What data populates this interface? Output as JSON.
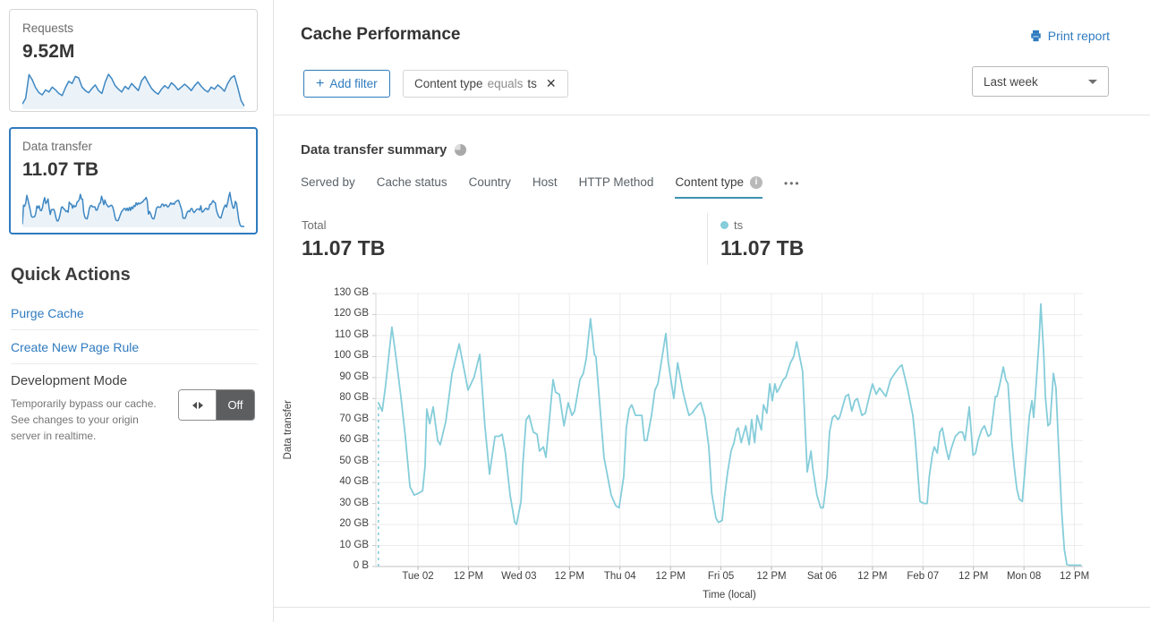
{
  "sidebar": {
    "requests_card": {
      "label": "Requests",
      "value": "9.52M",
      "spark": [
        12,
        28,
        95,
        80,
        58,
        44,
        38,
        52,
        46,
        60,
        52,
        42,
        36,
        58,
        76,
        70,
        90,
        86,
        60,
        50,
        44,
        56,
        66,
        50,
        42,
        74,
        96,
        84,
        64,
        54,
        46,
        62,
        54,
        70,
        60,
        50,
        78,
        90,
        72,
        56,
        46,
        40,
        54,
        64,
        56,
        72,
        64,
        52,
        60,
        68,
        60,
        50,
        64,
        74,
        62,
        52,
        46,
        60,
        54,
        66,
        58,
        48,
        70,
        86,
        92,
        60,
        22,
        6
      ]
    },
    "data_transfer_card": {
      "label": "Data transfer",
      "value": "11.07 TB"
    },
    "quick_actions": {
      "title": "Quick Actions",
      "links": [
        "Purge Cache",
        "Create New Page Rule"
      ],
      "dev_mode": {
        "title": "Development Mode",
        "description": "Temporarily bypass our cache. See changes to your origin server in realtime.",
        "toggle_state": "Off"
      }
    }
  },
  "header": {
    "title": "Cache Performance",
    "print_label": "Print report",
    "add_filter_label": "Add filter",
    "filter_chip": {
      "field": "Content type",
      "operator": "equals",
      "value": "ts"
    },
    "time_range": "Last week"
  },
  "summary": {
    "title": "Data transfer summary",
    "tabs": [
      {
        "label": "Served by"
      },
      {
        "label": "Cache status"
      },
      {
        "label": "Country"
      },
      {
        "label": "Host"
      },
      {
        "label": "HTTP Method"
      },
      {
        "label": "Content type",
        "active": true,
        "info": true
      }
    ],
    "more_label": "•••",
    "total": {
      "label": "Total",
      "value": "11.07 TB"
    },
    "series_stat": {
      "label": "ts",
      "value": "11.07 TB"
    }
  },
  "icons": {
    "close": "✕",
    "plus": "+",
    "info": "i"
  },
  "colors": {
    "link": "#2f7bbf",
    "selected_card_border": "#2f7bbf",
    "chart_line": "#85cdda",
    "sparkline": "#3e87c2",
    "sparkline_fill": "rgba(62,135,194,0.10)",
    "tab_underline": "#3d93b0",
    "grid": "#ececec",
    "toggle_off_bg": "#5d5e60"
  },
  "chart_data": {
    "type": "line",
    "title": "Data transfer summary",
    "xlabel": "Time (local)",
    "ylabel": "Data transfer",
    "x_unit": "hours (last week, hourly samples; x=0 is left edge of plot)",
    "x_range_hours": [
      0,
      168
    ],
    "ylim_gb": [
      0,
      130
    ],
    "y_ticks_gb": [
      0,
      10,
      20,
      30,
      40,
      50,
      60,
      70,
      80,
      90,
      100,
      110,
      120,
      130
    ],
    "y_tick_labels": [
      "0 B",
      "10 GB",
      "20 GB",
      "30 GB",
      "40 GB",
      "50 GB",
      "60 GB",
      "70 GB",
      "80 GB",
      "90 GB",
      "100 GB",
      "110 GB",
      "120 GB",
      "130 GB"
    ],
    "x_ticks_hours": [
      10,
      22,
      34,
      46,
      58,
      70,
      82,
      94,
      106,
      118,
      130,
      142,
      154,
      166
    ],
    "x_tick_labels": [
      "Tue 02",
      "12 PM",
      "Wed 03",
      "12 PM",
      "Thu 04",
      "12 PM",
      "Fri 05",
      "12 PM",
      "Sat 06",
      "12 PM",
      "Feb 07",
      "12 PM",
      "Mon 08",
      "12 PM"
    ],
    "grid": true,
    "leading_dashed_from_zero": true,
    "legend": {
      "position": "stats-row",
      "entries": [
        "ts"
      ]
    },
    "series": [
      {
        "name": "ts",
        "total": "11.07 TB",
        "color": "#85cdda",
        "points_h_gb": [
          [
            0.6,
            78
          ],
          [
            1.5,
            74
          ],
          [
            2.3,
            86
          ],
          [
            3.8,
            114
          ],
          [
            4.9,
            98
          ],
          [
            6,
            80
          ],
          [
            7,
            62
          ],
          [
            8.1,
            38
          ],
          [
            9.1,
            34
          ],
          [
            10.2,
            35
          ],
          [
            11.1,
            36
          ],
          [
            11.7,
            48
          ],
          [
            12.1,
            75
          ],
          [
            12.8,
            68
          ],
          [
            13.6,
            76
          ],
          [
            14.7,
            60
          ],
          [
            15.3,
            58
          ],
          [
            16.6,
            69
          ],
          [
            18.1,
            92
          ],
          [
            19.8,
            106
          ],
          [
            21.9,
            84
          ],
          [
            23.3,
            90
          ],
          [
            24.7,
            101
          ],
          [
            25.9,
            67
          ],
          [
            27,
            44
          ],
          [
            28.3,
            62
          ],
          [
            29.3,
            62
          ],
          [
            30,
            63
          ],
          [
            30.8,
            54
          ],
          [
            31.9,
            34
          ],
          [
            33,
            21
          ],
          [
            33.4,
            20
          ],
          [
            34.5,
            31
          ],
          [
            34.9,
            48
          ],
          [
            35.7,
            70
          ],
          [
            36.4,
            72
          ],
          [
            37.4,
            64
          ],
          [
            38.3,
            63
          ],
          [
            38.9,
            55
          ],
          [
            39.8,
            57
          ],
          [
            40.4,
            52
          ],
          [
            42.1,
            89
          ],
          [
            42.7,
            83
          ],
          [
            43.6,
            82
          ],
          [
            44.7,
            67
          ],
          [
            45.7,
            78
          ],
          [
            46.6,
            72
          ],
          [
            47.2,
            74
          ],
          [
            48.5,
            89
          ],
          [
            49.3,
            92
          ],
          [
            50,
            99
          ],
          [
            51,
            118
          ],
          [
            51.9,
            101
          ],
          [
            52.3,
            100
          ],
          [
            54.2,
            52
          ],
          [
            55.9,
            34
          ],
          [
            57,
            29
          ],
          [
            57.8,
            28
          ],
          [
            58.9,
            43
          ],
          [
            59.5,
            66
          ],
          [
            60.2,
            75
          ],
          [
            60.8,
            77
          ],
          [
            61.7,
            72
          ],
          [
            62.3,
            72
          ],
          [
            63.2,
            72
          ],
          [
            63.8,
            60
          ],
          [
            64.4,
            60
          ],
          [
            65.5,
            72
          ],
          [
            66.3,
            84
          ],
          [
            67,
            87
          ],
          [
            68.9,
            111
          ],
          [
            69.5,
            97
          ],
          [
            70.8,
            80
          ],
          [
            71.7,
            97
          ],
          [
            72.9,
            84
          ],
          [
            73.6,
            78
          ],
          [
            74.4,
            72
          ],
          [
            75.1,
            73
          ],
          [
            76.6,
            77
          ],
          [
            77.2,
            78
          ],
          [
            78.2,
            71
          ],
          [
            79.1,
            57
          ],
          [
            79.8,
            35
          ],
          [
            80.8,
            23
          ],
          [
            81.4,
            21
          ],
          [
            82.3,
            22
          ],
          [
            82.9,
            34
          ],
          [
            83.6,
            45
          ],
          [
            84.4,
            55
          ],
          [
            85.1,
            59
          ],
          [
            85.7,
            65
          ],
          [
            86.1,
            66
          ],
          [
            86.8,
            59
          ],
          [
            87.9,
            67
          ],
          [
            88.7,
            58
          ],
          [
            89.3,
            70
          ],
          [
            90,
            59
          ],
          [
            90.6,
            72
          ],
          [
            91.6,
            65
          ],
          [
            92.1,
            77
          ],
          [
            92.9,
            73
          ],
          [
            93.6,
            87
          ],
          [
            94.2,
            79
          ],
          [
            94.8,
            87
          ],
          [
            95.3,
            83
          ],
          [
            95.9,
            85
          ],
          [
            96.8,
            89
          ],
          [
            97.4,
            90
          ],
          [
            98.5,
            97
          ],
          [
            99.3,
            100
          ],
          [
            100,
            107
          ],
          [
            101.4,
            93
          ],
          [
            102.5,
            45
          ],
          [
            103.4,
            55
          ],
          [
            103.8,
            47
          ],
          [
            104.8,
            34
          ],
          [
            105.7,
            28
          ],
          [
            106.3,
            28
          ],
          [
            107.2,
            43
          ],
          [
            107.8,
            64
          ],
          [
            108.5,
            71
          ],
          [
            109.1,
            72
          ],
          [
            109.8,
            70
          ],
          [
            110.2,
            71
          ],
          [
            111.6,
            81
          ],
          [
            112.3,
            82
          ],
          [
            113.1,
            74
          ],
          [
            113.8,
            79
          ],
          [
            114.4,
            80
          ],
          [
            115.5,
            72
          ],
          [
            116.3,
            73
          ],
          [
            117,
            79
          ],
          [
            118,
            87
          ],
          [
            118.9,
            82
          ],
          [
            119.7,
            85
          ],
          [
            121.2,
            81
          ],
          [
            122.3,
            89
          ],
          [
            123.3,
            92
          ],
          [
            124.4,
            95
          ],
          [
            125,
            96
          ],
          [
            126.3,
            85
          ],
          [
            127.6,
            72
          ],
          [
            128.2,
            60
          ],
          [
            129.3,
            31
          ],
          [
            130.2,
            30
          ],
          [
            131,
            30
          ],
          [
            131.5,
            43
          ],
          [
            132.3,
            54
          ],
          [
            132.7,
            57
          ],
          [
            133.4,
            54
          ],
          [
            134,
            64
          ],
          [
            134.6,
            66
          ],
          [
            135.5,
            56
          ],
          [
            136.1,
            51
          ],
          [
            136.7,
            56
          ],
          [
            137.7,
            62
          ],
          [
            138.7,
            64
          ],
          [
            139.4,
            64
          ],
          [
            140,
            60
          ],
          [
            141,
            76
          ],
          [
            141.9,
            53
          ],
          [
            142.5,
            54
          ],
          [
            143.1,
            60
          ],
          [
            143.9,
            65
          ],
          [
            144.6,
            67
          ],
          [
            145.5,
            62
          ],
          [
            146.1,
            63
          ],
          [
            147.2,
            81
          ],
          [
            147.6,
            81
          ],
          [
            148.4,
            88
          ],
          [
            149.1,
            95
          ],
          [
            149.7,
            89
          ],
          [
            150.2,
            87
          ],
          [
            151.1,
            60
          ],
          [
            151.7,
            47
          ],
          [
            152.3,
            37
          ],
          [
            152.9,
            32
          ],
          [
            153.6,
            31
          ],
          [
            154.2,
            45
          ],
          [
            154.8,
            60
          ],
          [
            155.3,
            72
          ],
          [
            155.9,
            79
          ],
          [
            156.3,
            71
          ],
          [
            156.9,
            87
          ],
          [
            157.6,
            108
          ],
          [
            158,
            125
          ],
          [
            158.7,
            101
          ],
          [
            159.1,
            81
          ],
          [
            159.7,
            67
          ],
          [
            160.2,
            68
          ],
          [
            161,
            92
          ],
          [
            161.6,
            85
          ],
          [
            162.3,
            54
          ],
          [
            163,
            25
          ],
          [
            163.6,
            8
          ],
          [
            164.2,
            1
          ],
          [
            164.8,
            0
          ],
          [
            166,
            0
          ],
          [
            167.5,
            0
          ]
        ]
      }
    ]
  }
}
